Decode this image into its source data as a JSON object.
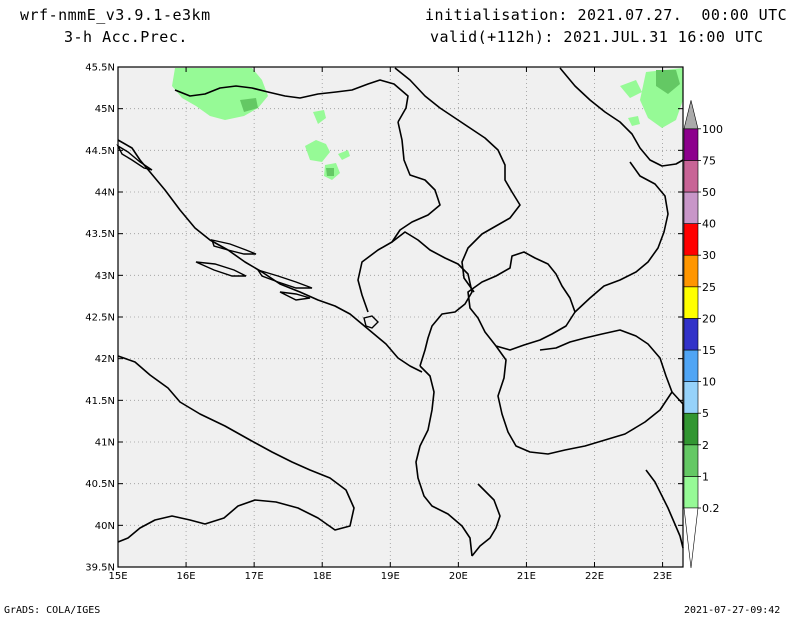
{
  "header": {
    "model": "wrf-nmmE_v3.9.1-e3km",
    "field": "3-h Acc.Prec.",
    "init": "initialisation: 2021.07.27.  00:00 UTC",
    "valid": "valid(+112h): 2021.JUL.31 16:00 UTC"
  },
  "map": {
    "lon_range": [
      15,
      23.3
    ],
    "lat_range": [
      39.5,
      45.5
    ],
    "lon_ticks": [
      15,
      16,
      17,
      18,
      19,
      20,
      21,
      22,
      23
    ],
    "lon_labels": [
      "15E",
      "16E",
      "17E",
      "18E",
      "19E",
      "20E",
      "21E",
      "22E",
      "23E"
    ],
    "lat_ticks": [
      39.5,
      40,
      40.5,
      41,
      41.5,
      42,
      42.5,
      43,
      43.5,
      44,
      44.5,
      45,
      45.5
    ],
    "lat_labels": [
      "39.5N",
      "40N",
      "40.5N",
      "41N",
      "41.5N",
      "42N",
      "42.5N",
      "43N",
      "43.5N",
      "44N",
      "44.5N",
      "45N",
      "45.5N"
    ],
    "background_color": "#f0f0f0",
    "grid": true
  },
  "legend": {
    "levels": [
      "0.2",
      "1",
      "2",
      "5",
      "10",
      "15",
      "20",
      "25",
      "30",
      "40",
      "50",
      "75",
      "100"
    ],
    "colors": [
      "#96fa96",
      "#64c864",
      "#329632",
      "#96d2fa",
      "#50a5f5",
      "#3232c8",
      "#ffff00",
      "#ff9600",
      "#ff0000",
      "#c896c8",
      "#c86496",
      "#8c008c",
      "#aaaaaa"
    ]
  },
  "precip_areas": [
    {
      "color": "#96fa96"
    },
    {
      "color": "#64c864"
    }
  ],
  "footer": {
    "left": "GrADS: COLA/IGES",
    "right": "2021-07-27-09:42"
  }
}
